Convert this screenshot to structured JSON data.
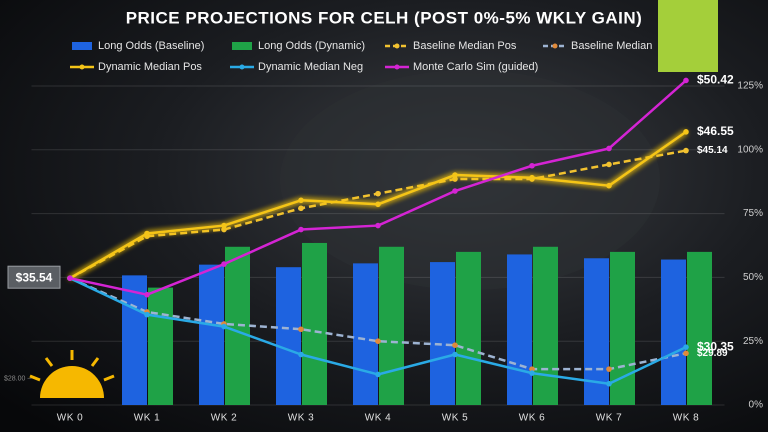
{
  "chart_data": {
    "type": "combo",
    "title": "PRICE PROJECTIONS FOR CELH (POST 0%-5% WKLY GAIN)",
    "categories": [
      "WK 0",
      "WK 1",
      "WK 2",
      "WK 3",
      "WK 4",
      "WK 5",
      "WK 6",
      "WK 7",
      "WK 8"
    ],
    "ylim": [
      0,
      125
    ],
    "yticks": [
      {
        "value": 0,
        "label": "0%"
      },
      {
        "value": 25,
        "label": "25%"
      },
      {
        "value": 50,
        "label": "50%"
      },
      {
        "value": 75,
        "label": "75%"
      },
      {
        "value": 100,
        "label": "100%"
      },
      {
        "value": 125,
        "label": "125%"
      }
    ],
    "y2lim": [
      26,
      50
    ],
    "y2ticks": [
      {
        "value": 28,
        "label": "$28.00"
      }
    ],
    "grid": true,
    "series": [
      {
        "name": "Long Odds (Baseline)",
        "type": "bar",
        "color": "#1e63e0",
        "values": [
          null,
          50.8,
          55,
          54,
          55.5,
          56,
          59,
          57.5,
          57
        ]
      },
      {
        "name": "Long Odds (Dynamic)",
        "type": "bar",
        "color": "#1fa247",
        "values": [
          null,
          46,
          62,
          63.5,
          62,
          60,
          62,
          60,
          60
        ]
      },
      {
        "name": "Baseline Median Pos",
        "type": "line",
        "axis": "y2",
        "dashed": true,
        "color": "#f2c230",
        "values": [
          35.54,
          38.7,
          39.2,
          40.8,
          41.9,
          43.0,
          43.0,
          44.1,
          45.14
        ],
        "value_labels": [
          "$35.54",
          null,
          null,
          null,
          null,
          null,
          null,
          null,
          "$45.14"
        ]
      },
      {
        "name": "Baseline Median",
        "type": "line",
        "axis": "y2",
        "dashed": true,
        "color": "#9db3d2",
        "marker_color": "#e08a3a",
        "values": [
          35.54,
          33.0,
          32.1,
          31.7,
          30.8,
          30.5,
          28.7,
          28.7,
          29.89
        ],
        "value_labels": [
          null,
          null,
          null,
          null,
          null,
          null,
          null,
          null,
          "$29.89"
        ]
      },
      {
        "name": "Dynamic Median Pos",
        "type": "line",
        "axis": "y2",
        "color": "#f5c518",
        "glow": true,
        "values": [
          35.54,
          38.9,
          39.5,
          41.4,
          41.1,
          43.3,
          43.1,
          42.5,
          46.55
        ],
        "value_labels": [
          null,
          null,
          null,
          null,
          null,
          null,
          null,
          null,
          "$46.55"
        ]
      },
      {
        "name": "Dynamic Median Neg",
        "type": "line",
        "axis": "y2",
        "color": "#2aaae6",
        "values": [
          35.54,
          32.8,
          31.9,
          29.8,
          28.3,
          29.8,
          28.4,
          27.6,
          30.35
        ],
        "value_labels": [
          null,
          null,
          null,
          null,
          null,
          null,
          null,
          null,
          "$30.35"
        ]
      },
      {
        "name": "Monte Carlo Sim (guided)",
        "type": "line",
        "axis": "y2",
        "color": "#d424d4",
        "values": [
          35.54,
          34.3,
          36.6,
          39.2,
          39.5,
          42.1,
          44.0,
          45.3,
          50.42
        ],
        "value_labels": [
          null,
          null,
          null,
          null,
          null,
          null,
          null,
          null,
          "$50.42"
        ]
      }
    ]
  }
}
